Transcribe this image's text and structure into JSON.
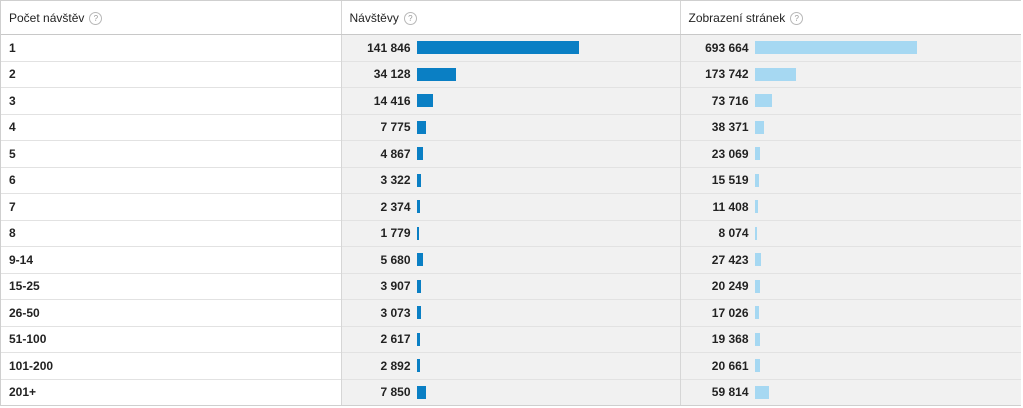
{
  "headers": {
    "dimension": "Počet návštěv",
    "visits": "Návštěvy",
    "pageviews": "Zobrazení stránek",
    "help_glyph": "?"
  },
  "colors": {
    "visits_bar": "#0a7fc4",
    "pageviews_bar": "#a6d8f2"
  },
  "rows": [
    {
      "label": "1",
      "visits": "141 846",
      "visits_value": 141846,
      "pageviews": "693 664",
      "pageviews_value": 693664
    },
    {
      "label": "2",
      "visits": "34 128",
      "visits_value": 34128,
      "pageviews": "173 742",
      "pageviews_value": 173742
    },
    {
      "label": "3",
      "visits": "14 416",
      "visits_value": 14416,
      "pageviews": "73 716",
      "pageviews_value": 73716
    },
    {
      "label": "4",
      "visits": "7 775",
      "visits_value": 7775,
      "pageviews": "38 371",
      "pageviews_value": 38371
    },
    {
      "label": "5",
      "visits": "4 867",
      "visits_value": 4867,
      "pageviews": "23 069",
      "pageviews_value": 23069
    },
    {
      "label": "6",
      "visits": "3 322",
      "visits_value": 3322,
      "pageviews": "15 519",
      "pageviews_value": 15519
    },
    {
      "label": "7",
      "visits": "2 374",
      "visits_value": 2374,
      "pageviews": "11 408",
      "pageviews_value": 11408
    },
    {
      "label": "8",
      "visits": "1 779",
      "visits_value": 1779,
      "pageviews": "8 074",
      "pageviews_value": 8074
    },
    {
      "label": "9-14",
      "visits": "5 680",
      "visits_value": 5680,
      "pageviews": "27 423",
      "pageviews_value": 27423
    },
    {
      "label": "15-25",
      "visits": "3 907",
      "visits_value": 3907,
      "pageviews": "20 249",
      "pageviews_value": 20249
    },
    {
      "label": "26-50",
      "visits": "3 073",
      "visits_value": 3073,
      "pageviews": "17 026",
      "pageviews_value": 17026
    },
    {
      "label": "51-100",
      "visits": "2 617",
      "visits_value": 2617,
      "pageviews": "19 368",
      "pageviews_value": 19368
    },
    {
      "label": "101-200",
      "visits": "2 892",
      "visits_value": 2892,
      "pageviews": "20 661",
      "pageviews_value": 20661
    },
    {
      "label": "201+",
      "visits": "7 850",
      "visits_value": 7850,
      "pageviews": "59 814",
      "pageviews_value": 59814
    }
  ]
}
